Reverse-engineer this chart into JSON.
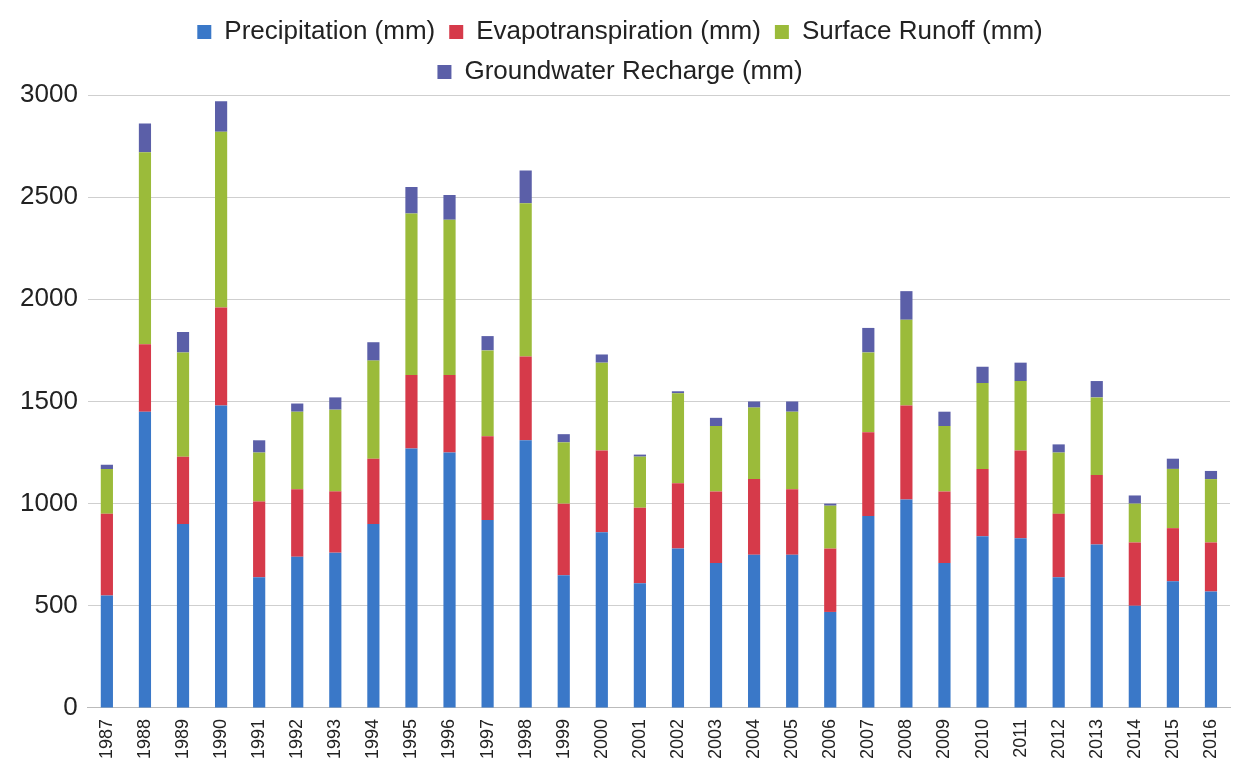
{
  "chart_data": {
    "type": "bar",
    "stacked": true,
    "legend": "top",
    "grid": "y",
    "categories": [
      "1987",
      "1988",
      "1989",
      "1990",
      "1991",
      "1992",
      "1993",
      "1994",
      "1995",
      "1996",
      "1997",
      "1998",
      "1999",
      "2000",
      "2001",
      "2002",
      "2003",
      "2004",
      "2005",
      "2006",
      "2007",
      "2008",
      "2009",
      "2010",
      "2011",
      "2012",
      "2013",
      "2014",
      "2015",
      "2016"
    ],
    "ylim": [
      0,
      3000
    ],
    "yticks": [
      0,
      500,
      1000,
      1500,
      2000,
      2500,
      3000
    ],
    "series": [
      {
        "name": "Precipitation (mm)",
        "color": "#3a78c8",
        "values": [
          550,
          1450,
          900,
          1480,
          640,
          740,
          760,
          900,
          1270,
          1250,
          920,
          1310,
          650,
          860,
          610,
          780,
          710,
          750,
          750,
          470,
          940,
          1020,
          710,
          840,
          830,
          640,
          800,
          500,
          620,
          570
        ]
      },
      {
        "name": "Evapotranspiration (mm)",
        "color": "#d63a4a",
        "values": [
          400,
          330,
          330,
          480,
          370,
          330,
          300,
          320,
          360,
          380,
          410,
          410,
          350,
          400,
          370,
          320,
          350,
          370,
          320,
          310,
          410,
          460,
          350,
          330,
          430,
          310,
          340,
          310,
          260,
          240
        ]
      },
      {
        "name": "Surface Runoff (mm)",
        "color": "#9bbb3a",
        "values": [
          220,
          940,
          510,
          860,
          240,
          380,
          400,
          480,
          790,
          760,
          420,
          750,
          300,
          430,
          250,
          440,
          320,
          350,
          380,
          210,
          390,
          420,
          320,
          420,
          340,
          300,
          380,
          190,
          290,
          310
        ]
      },
      {
        "name": "Groundwater Recharge (mm)",
        "color": "#5b5fa8",
        "values": [
          20,
          140,
          100,
          150,
          60,
          40,
          60,
          90,
          130,
          120,
          70,
          160,
          40,
          40,
          10,
          10,
          40,
          30,
          50,
          10,
          120,
          140,
          70,
          80,
          90,
          40,
          80,
          40,
          50,
          40
        ]
      }
    ]
  }
}
